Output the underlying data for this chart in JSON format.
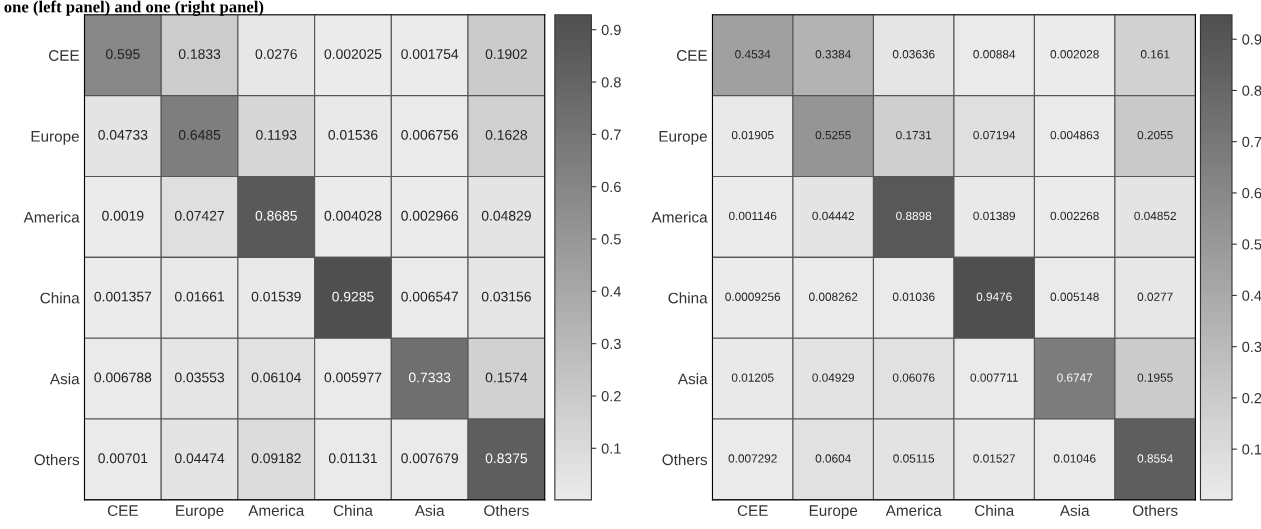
{
  "chart_data": [
    {
      "type": "heatmap",
      "annotations": [
        "one (left panel) and one (right panel)"
      ],
      "categories": [
        "CEE",
        "Europe",
        "America",
        "China",
        "Asia",
        "Others"
      ],
      "y_categories": [
        "CEE",
        "Europe",
        "America",
        "China",
        "Asia",
        "Others"
      ],
      "cells": [
        [
          0.595,
          0.1833,
          0.0276,
          0.002025,
          0.001754,
          0.1902
        ],
        [
          0.04733,
          0.6485,
          0.1193,
          0.01536,
          0.006756,
          0.1628
        ],
        [
          0.0019,
          0.07427,
          0.8685,
          0.004028,
          0.002966,
          0.04829
        ],
        [
          0.001357,
          0.01661,
          0.01539,
          0.9285,
          0.006547,
          0.03156
        ],
        [
          0.006788,
          0.03553,
          0.06104,
          0.005977,
          0.7333,
          0.1574
        ],
        [
          0.00701,
          0.04474,
          0.09182,
          0.01131,
          0.007679,
          0.8375
        ]
      ],
      "clim": [
        0.001357,
        0.9285
      ],
      "cticks": [
        0.1,
        0.2,
        0.3,
        0.4,
        0.5,
        0.6,
        0.7,
        0.8,
        0.9
      ],
      "data_labels": true
    },
    {
      "type": "heatmap",
      "categories": [
        "CEE",
        "Europe",
        "America",
        "China",
        "Asia",
        "Others"
      ],
      "y_categories": [
        "CEE",
        "Europe",
        "America",
        "China",
        "Asia",
        "Others"
      ],
      "cells": [
        [
          0.4534,
          0.3384,
          0.03636,
          0.00884,
          0.002028,
          0.161
        ],
        [
          0.01905,
          0.5255,
          0.1731,
          0.07194,
          0.004863,
          0.2055
        ],
        [
          0.001146,
          0.04442,
          0.8898,
          0.01389,
          0.002268,
          0.04852
        ],
        [
          0.0009256,
          0.008262,
          0.01036,
          0.9476,
          0.005148,
          0.0277
        ],
        [
          0.01205,
          0.04929,
          0.06076,
          0.007711,
          0.6747,
          0.1955
        ],
        [
          0.007292,
          0.0604,
          0.05115,
          0.01527,
          0.01046,
          0.8554
        ]
      ],
      "clim": [
        0.0009256,
        0.9476
      ],
      "cticks": [
        0.1,
        0.2,
        0.3,
        0.4,
        0.5,
        0.6,
        0.7,
        0.8,
        0.9
      ],
      "data_labels": true
    }
  ]
}
